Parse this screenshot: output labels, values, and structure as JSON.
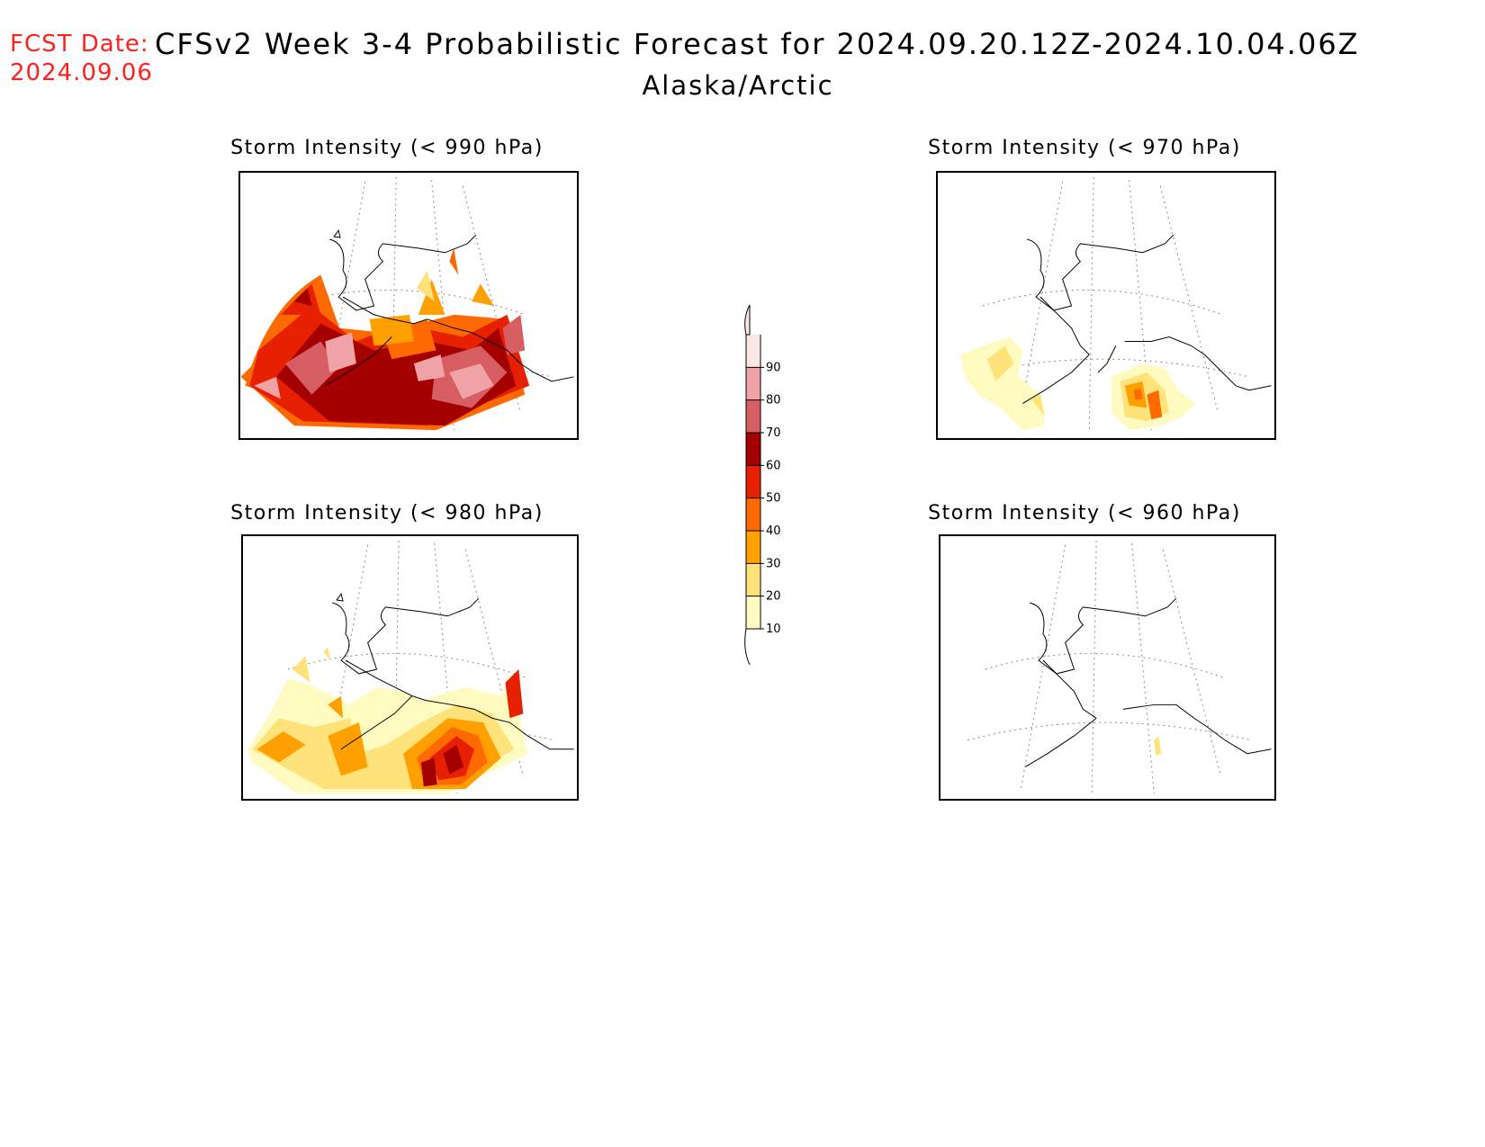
{
  "header": {
    "fcst_label": "FCST Date:",
    "fcst_date": "2024.09.06",
    "title": "CFSv2 Week 3-4 Probabilistic Forecast for 2024.09.20.12Z-2024.10.04.06Z",
    "subtitle": "Alaska/Arctic"
  },
  "panels": [
    {
      "title": "Storm Intensity (< 990 hPa)",
      "threshold_hpa": 990,
      "coverage": "widespread, 20-90% across Bering Sea and Gulf of Alaska"
    },
    {
      "title": "Storm Intensity (< 970 hPa)",
      "threshold_hpa": 970,
      "coverage": "scattered 10-50% over Bering Sea and Gulf of Alaska"
    },
    {
      "title": "Storm Intensity (< 980 hPa)",
      "threshold_hpa": 980,
      "coverage": "moderate 10-70% along southern coast"
    },
    {
      "title": "Storm Intensity (< 960 hPa)",
      "threshold_hpa": 960,
      "coverage": "isolated 10-20% in Gulf of Alaska"
    }
  ],
  "colorbar": {
    "levels": [
      "10",
      "20",
      "30",
      "40",
      "50",
      "60",
      "70",
      "80",
      "90"
    ],
    "colors": [
      "#fffbc0",
      "#ffe37a",
      "#ffa000",
      "#ff6a00",
      "#e62000",
      "#a50000",
      "#d65e63",
      "#f0a3a6",
      "#fbe6e6"
    ]
  }
}
